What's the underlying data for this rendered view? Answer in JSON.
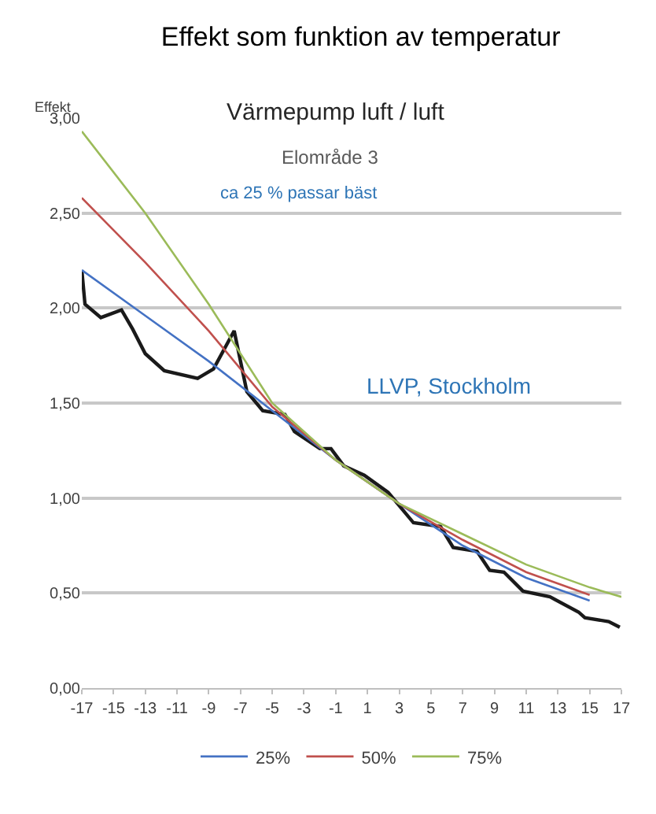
{
  "chart_data": {
    "type": "line",
    "title": "Effekt som funktion av temperatur",
    "subtitle": "Värmepump luft / luft",
    "ylabel": "Effekt",
    "annotations": [
      "Elområde 3",
      "ca 25 % passar bäst",
      "LLVP, Stockholm"
    ],
    "xlim": [
      -17,
      17
    ],
    "xticks": [
      -17,
      -15,
      -13,
      -11,
      -9,
      -7,
      -5,
      -3,
      -1,
      1,
      3,
      5,
      7,
      9,
      11,
      13,
      15,
      17
    ],
    "ylim": [
      0,
      3
    ],
    "yticks": [
      {
        "value": 0,
        "label": "0,00"
      },
      {
        "value": 0.5,
        "label": "0,50"
      },
      {
        "value": 1,
        "label": "1,00"
      },
      {
        "value": 1.5,
        "label": "1,50"
      },
      {
        "value": 2,
        "label": "2,00"
      },
      {
        "value": 2.5,
        "label": "2,50"
      },
      {
        "value": 3,
        "label": "3,00"
      }
    ],
    "grid": "y",
    "legend": "bottom",
    "marker": "none",
    "line_style": "solid",
    "series": [
      {
        "color": "#1a1a1a",
        "x": [
          -17,
          -16.8,
          -15.8,
          -14.5,
          -13.8,
          -13,
          -11.8,
          -9.7,
          -8.7,
          -7.4,
          -6.6,
          -5.6,
          -4.2,
          -3.6,
          -2,
          -1.3,
          -0.5,
          0.8,
          2.3,
          3.2,
          3.9,
          5.6,
          6.4,
          7.9,
          8.7,
          9.6,
          10.8,
          12.5,
          14.3,
          14.7,
          16.2,
          16.9
        ],
        "values": [
          2.2,
          2.02,
          1.95,
          1.99,
          1.89,
          1.76,
          1.67,
          1.63,
          1.68,
          1.88,
          1.56,
          1.46,
          1.44,
          1.35,
          1.26,
          1.26,
          1.17,
          1.12,
          1.03,
          0.94,
          0.87,
          0.85,
          0.74,
          0.72,
          0.62,
          0.61,
          0.51,
          0.48,
          0.4,
          0.37,
          0.35,
          0.32
        ]
      },
      {
        "name": "25%",
        "color": "#4472c4",
        "x": [
          -17,
          -13,
          -9,
          -5,
          -1,
          3,
          7,
          11,
          15
        ],
        "values": [
          2.2,
          1.96,
          1.72,
          1.46,
          1.2,
          0.97,
          0.75,
          0.58,
          0.46
        ]
      },
      {
        "name": "50%",
        "color": "#c0504d",
        "x": [
          -17,
          -13,
          -9,
          -5,
          -1,
          3,
          7,
          11,
          15
        ],
        "values": [
          2.58,
          2.24,
          1.88,
          1.48,
          1.2,
          0.97,
          0.78,
          0.61,
          0.49
        ]
      },
      {
        "name": "75%",
        "color": "#9bbb59",
        "x": [
          -17,
          -13,
          -9,
          -5,
          -1,
          3,
          7,
          11,
          15,
          17
        ],
        "values": [
          2.93,
          2.5,
          2.02,
          1.5,
          1.2,
          0.97,
          0.81,
          0.65,
          0.53,
          0.48
        ]
      }
    ]
  }
}
